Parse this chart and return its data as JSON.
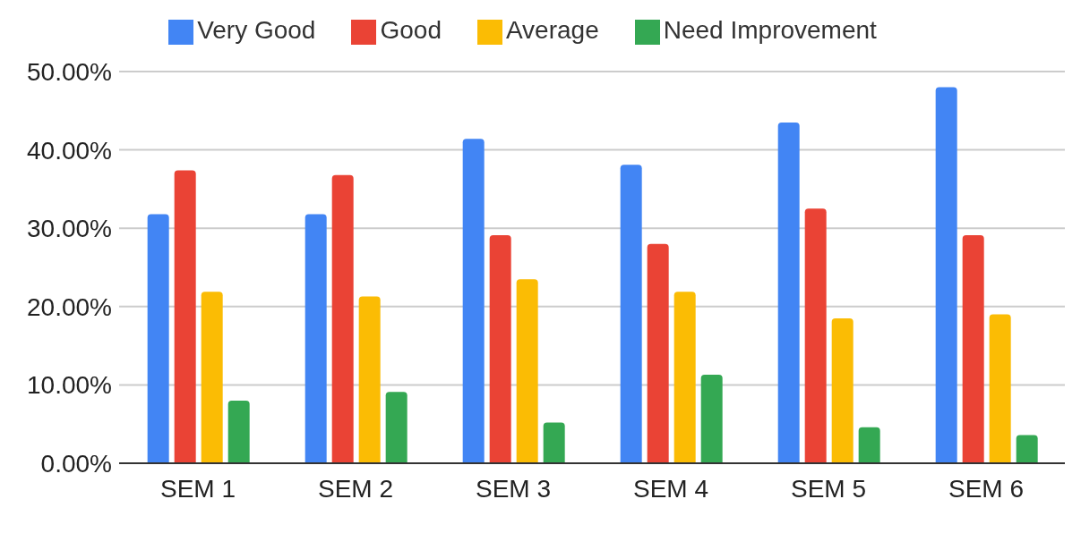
{
  "chart_data": {
    "type": "bar",
    "categories": [
      "SEM 1",
      "SEM 2",
      "SEM 3",
      "SEM 4",
      "SEM 5",
      "SEM 6"
    ],
    "series": [
      {
        "name": "Very Good",
        "color": "#4285f4",
        "values": [
          31.8,
          31.8,
          41.4,
          38.1,
          43.5,
          48.0
        ]
      },
      {
        "name": "Good",
        "color": "#ea4335",
        "values": [
          37.4,
          36.8,
          29.1,
          28.0,
          32.5,
          29.1
        ]
      },
      {
        "name": "Average",
        "color": "#fbbc04",
        "values": [
          21.9,
          21.3,
          23.5,
          21.9,
          18.5,
          19.0
        ]
      },
      {
        "name": "Need Improvement",
        "color": "#34a853",
        "values": [
          8.0,
          9.1,
          5.2,
          11.3,
          4.6,
          3.6
        ]
      }
    ],
    "ylim": [
      0,
      50
    ],
    "yticks": [
      {
        "value": 0,
        "label": "0.00%"
      },
      {
        "value": 10,
        "label": "10.00%"
      },
      {
        "value": 20,
        "label": "20.00%"
      },
      {
        "value": 30,
        "label": "30.00%"
      },
      {
        "value": 40,
        "label": "40.00%"
      },
      {
        "value": 50,
        "label": "50.00%"
      }
    ],
    "grid": "y",
    "legend": "top"
  }
}
